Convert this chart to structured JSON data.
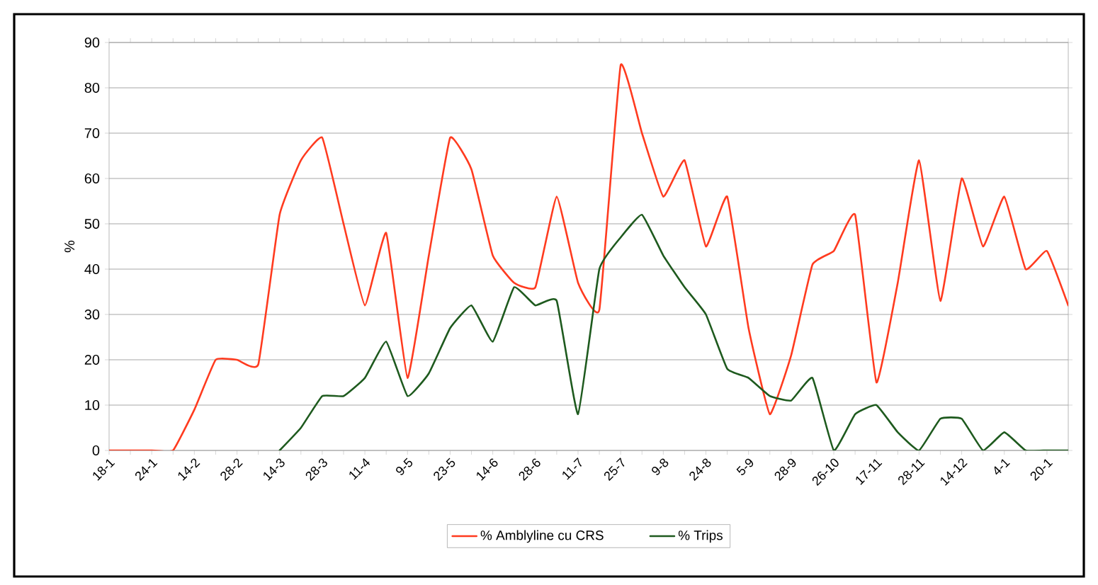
{
  "chart_data": {
    "type": "line",
    "ylabel": "%",
    "categories": [
      "18-1",
      null,
      "24-1",
      null,
      "14-2",
      null,
      "28-2",
      null,
      "14-3",
      null,
      "28-3",
      null,
      "11-4",
      null,
      "9-5",
      null,
      "23-5",
      null,
      "14-6",
      null,
      "28-6",
      null,
      "11-7",
      null,
      "25-7",
      null,
      "9-8",
      null,
      "24-8",
      null,
      "5-9",
      null,
      "28-9",
      null,
      "26-10",
      null,
      "17-11",
      null,
      "28-11",
      null,
      "14-12",
      null,
      "4-1",
      null,
      "20-1",
      null
    ],
    "series": [
      {
        "name": "% Amblyline cu CRS",
        "color": "#ff3b1f",
        "values": [
          0,
          0,
          0,
          0,
          9,
          20,
          20,
          19,
          52,
          64,
          69,
          50,
          32,
          48,
          16,
          43,
          69,
          62,
          43,
          37,
          36,
          56,
          37,
          31,
          85,
          70,
          56,
          64,
          45,
          56,
          27,
          8,
          21,
          41,
          44,
          52,
          15,
          37,
          64,
          33,
          60,
          45,
          56,
          40,
          44,
          32
        ]
      },
      {
        "name": "% Trips",
        "color": "#1e5a1e",
        "values": [
          null,
          null,
          null,
          null,
          null,
          null,
          null,
          null,
          0,
          5,
          12,
          12,
          16,
          24,
          12,
          17,
          27,
          32,
          24,
          36,
          32,
          33,
          8,
          40,
          47,
          52,
          43,
          36,
          30,
          18,
          16,
          12,
          11,
          16,
          0,
          8,
          10,
          4,
          0,
          7,
          7,
          0,
          4,
          0,
          0,
          0
        ]
      }
    ],
    "ylim": [
      0,
      90
    ],
    "yticks": [
      0,
      10,
      20,
      30,
      40,
      50,
      60,
      70,
      80,
      90
    ],
    "grid": "y",
    "legend": "bottom",
    "marker": "none",
    "line_style": "solid"
  }
}
